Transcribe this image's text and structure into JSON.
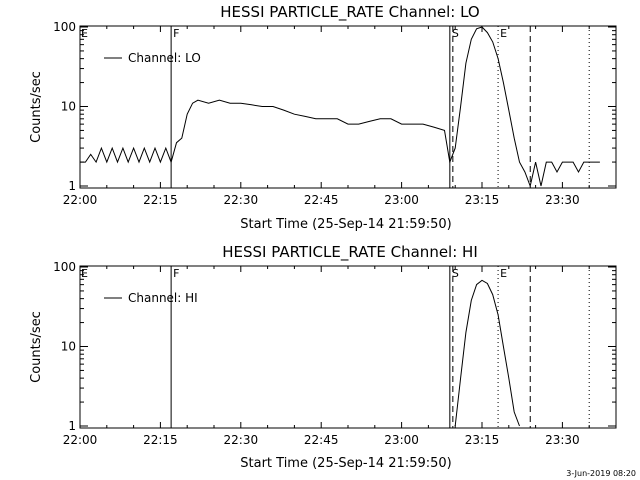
{
  "chart_data": [
    {
      "type": "line",
      "title": "HESSI PARTICLE_RATE Channel: LO",
      "xlabel": "Start Time (25-Sep-14 21:59:50)",
      "ylabel": "Counts/sec",
      "yscale": "log",
      "xlim": [
        "22:00",
        "23:40"
      ],
      "ylim": [
        1,
        100
      ],
      "xticks": [
        "22:00",
        "22:15",
        "22:30",
        "22:45",
        "23:00",
        "23:15",
        "23:30"
      ],
      "yticks": [
        "1",
        "10",
        "100"
      ],
      "legend": {
        "placement": "top-left",
        "label": "Channel: LO"
      },
      "markers": [
        {
          "label": "F",
          "time": "22:17",
          "style": "solid"
        },
        {
          "label": "S",
          "time": "23:09",
          "style": "solid+dashed"
        },
        {
          "label": "E",
          "time": "23:18",
          "style": "dotted"
        },
        {
          "label": "",
          "time": "23:24",
          "style": "dashed"
        },
        {
          "label": "",
          "time": "23:35",
          "style": "dotted"
        }
      ],
      "edge_label": "E",
      "series": [
        {
          "values": [
            [
              "22:00",
              2
            ],
            [
              "22:01",
              2
            ],
            [
              "22:02",
              2.5
            ],
            [
              "22:03",
              2
            ],
            [
              "22:04",
              3
            ],
            [
              "22:05",
              2
            ],
            [
              "22:06",
              3
            ],
            [
              "22:07",
              2
            ],
            [
              "22:08",
              3
            ],
            [
              "22:09",
              2
            ],
            [
              "22:10",
              3
            ],
            [
              "22:11",
              2
            ],
            [
              "22:12",
              3
            ],
            [
              "22:13",
              2
            ],
            [
              "22:14",
              3
            ],
            [
              "22:15",
              2
            ],
            [
              "22:16",
              3
            ],
            [
              "22:17",
              2
            ],
            [
              "22:18",
              3.5
            ],
            [
              "22:19",
              4
            ],
            [
              "22:20",
              8
            ],
            [
              "22:21",
              11
            ],
            [
              "22:22",
              12
            ],
            [
              "22:24",
              11
            ],
            [
              "22:26",
              12
            ],
            [
              "22:28",
              11
            ],
            [
              "22:30",
              11
            ],
            [
              "22:32",
              10.5
            ],
            [
              "22:34",
              10
            ],
            [
              "22:36",
              10
            ],
            [
              "22:38",
              9
            ],
            [
              "22:40",
              8
            ],
            [
              "22:42",
              7.5
            ],
            [
              "22:44",
              7
            ],
            [
              "22:46",
              7
            ],
            [
              "22:48",
              7
            ],
            [
              "22:50",
              6
            ],
            [
              "22:52",
              6
            ],
            [
              "22:54",
              6.5
            ],
            [
              "22:56",
              7
            ],
            [
              "22:58",
              7
            ],
            [
              "23:00",
              6
            ],
            [
              "23:02",
              6
            ],
            [
              "23:04",
              6
            ],
            [
              "23:06",
              5.5
            ],
            [
              "23:08",
              5
            ],
            [
              "23:09",
              2
            ],
            [
              "23:10",
              3
            ],
            [
              "23:11",
              10
            ],
            [
              "23:12",
              35
            ],
            [
              "23:13",
              70
            ],
            [
              "23:14",
              95
            ],
            [
              "23:15",
              100
            ],
            [
              "23:16",
              85
            ],
            [
              "23:17",
              65
            ],
            [
              "23:18",
              40
            ],
            [
              "23:19",
              20
            ],
            [
              "23:20",
              9
            ],
            [
              "23:21",
              4
            ],
            [
              "23:22",
              2
            ],
            [
              "23:23",
              1.5
            ],
            [
              "23:24",
              1
            ],
            [
              "23:25",
              2
            ],
            [
              "23:26",
              1
            ],
            [
              "23:27",
              2
            ],
            [
              "23:28",
              2
            ],
            [
              "23:29",
              1.5
            ],
            [
              "23:30",
              2
            ],
            [
              "23:31",
              2
            ],
            [
              "23:32",
              2
            ],
            [
              "23:33",
              1.5
            ],
            [
              "23:34",
              2
            ],
            [
              "23:35",
              2
            ],
            [
              "23:36",
              2
            ],
            [
              "23:37",
              2
            ]
          ]
        }
      ]
    },
    {
      "type": "line",
      "title": "HESSI PARTICLE_RATE Channel: HI",
      "xlabel": "Start Time (25-Sep-14 21:59:50)",
      "ylabel": "Counts/sec",
      "yscale": "log",
      "xlim": [
        "22:00",
        "23:40"
      ],
      "ylim": [
        1,
        100
      ],
      "xticks": [
        "22:00",
        "22:15",
        "22:30",
        "22:45",
        "23:00",
        "23:15",
        "23:30"
      ],
      "yticks": [
        "1",
        "10",
        "100"
      ],
      "legend": {
        "placement": "top-left",
        "label": "Channel: HI"
      },
      "markers": [
        {
          "label": "F",
          "time": "22:17",
          "style": "solid"
        },
        {
          "label": "S",
          "time": "23:09",
          "style": "solid+dashed"
        },
        {
          "label": "E",
          "time": "23:18",
          "style": "dotted"
        },
        {
          "label": "",
          "time": "23:24",
          "style": "dashed"
        },
        {
          "label": "",
          "time": "23:35",
          "style": "dotted"
        }
      ],
      "edge_label": "E",
      "series": [
        {
          "values": [
            [
              "23:10",
              1
            ],
            [
              "23:11",
              4
            ],
            [
              "23:12",
              15
            ],
            [
              "23:13",
              38
            ],
            [
              "23:14",
              60
            ],
            [
              "23:15",
              68
            ],
            [
              "23:16",
              62
            ],
            [
              "23:17",
              45
            ],
            [
              "23:18",
              25
            ],
            [
              "23:19",
              10
            ],
            [
              "23:20",
              4
            ],
            [
              "23:21",
              1.5
            ],
            [
              "23:22",
              1
            ]
          ]
        }
      ]
    }
  ],
  "footer": {
    "timestamp": "3-Jun-2019 08:20"
  }
}
